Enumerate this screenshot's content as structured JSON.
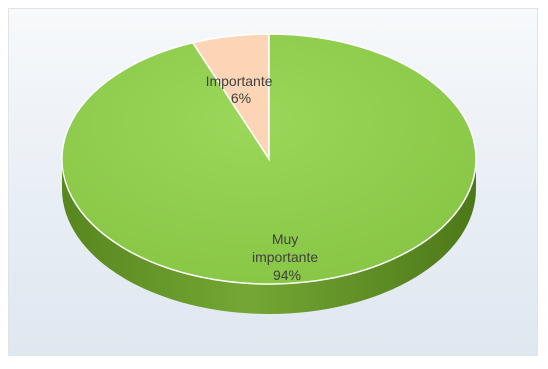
{
  "chart_data": {
    "type": "pie",
    "style": "3d",
    "title": "",
    "legend": "none",
    "slices": [
      {
        "label": "Importante",
        "value": 6,
        "value_label": "6%",
        "color": "#fbd5b5"
      },
      {
        "label": "Muy importante",
        "label_lines": [
          "Muy",
          "importante"
        ],
        "value": 94,
        "value_label": "94%",
        "color": "#92d050"
      }
    ]
  },
  "colors": {
    "side_dark": "#4f7a1e",
    "side_light": "#6e9e2e",
    "border": "#ffffff"
  }
}
